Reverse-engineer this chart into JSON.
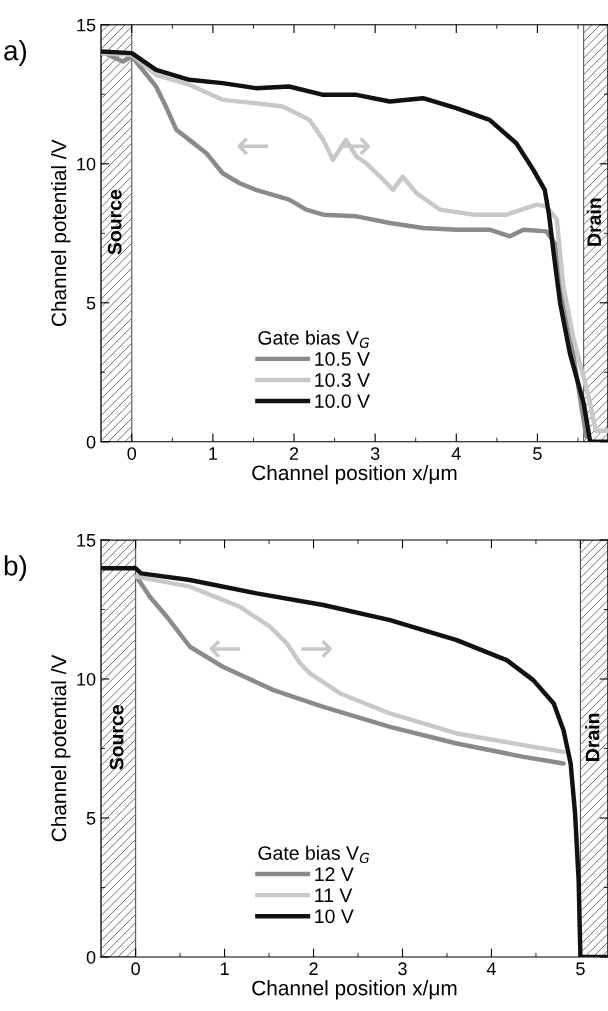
{
  "chart_data": [
    {
      "type": "line",
      "title": "a)",
      "xlabel": "Channel position x/μm",
      "ylabel": "Channel potential /V",
      "legend_title": "Gate bias V$_{G}$",
      "legend": "bottom",
      "grid": false,
      "line_style": "solid",
      "marker": "none",
      "xlim": [
        -0.38,
        5.87
      ],
      "ylim": [
        0,
        15
      ],
      "xticks": [
        0,
        1,
        2,
        3,
        4,
        5
      ],
      "yticks": [
        0,
        5,
        10,
        15
      ],
      "bands": [
        {
          "axis": "x",
          "from": -0.38,
          "to": 0,
          "label": "Source"
        },
        {
          "axis": "x",
          "from": 5.57,
          "to": 5.87,
          "label": "Drain"
        }
      ],
      "series": [
        {
          "name": "10.5 V",
          "color": "#8a8a8c",
          "x": [
            -0.38,
            -0.11,
            0,
            0.3,
            0.42,
            0.55,
            0.71,
            0.92,
            1.12,
            1.33,
            1.53,
            1.94,
            2.15,
            2.36,
            2.77,
            3.18,
            3.59,
            4.0,
            4.41,
            4.66,
            4.83,
            5.11,
            5.24,
            5.32,
            5.45,
            5.6
          ],
          "values": [
            14.04,
            13.68,
            13.86,
            12.78,
            12.06,
            11.22,
            10.86,
            10.38,
            9.66,
            9.3,
            9.06,
            8.71,
            8.35,
            8.17,
            8.11,
            7.87,
            7.69,
            7.63,
            7.63,
            7.39,
            7.63,
            7.57,
            7.03,
            5.2,
            3.0,
            0.2
          ]
        },
        {
          "name": "10.3 V",
          "color": "#c8c8c8",
          "x": [
            -0.38,
            0,
            0.3,
            0.71,
            1.12,
            1.53,
            1.86,
            2.03,
            2.19,
            2.36,
            2.48,
            2.64,
            2.77,
            2.89,
            3.06,
            3.22,
            3.34,
            3.51,
            3.8,
            4.21,
            4.62,
            4.99,
            5.11,
            5.24,
            5.32,
            5.44,
            5.65,
            5.72,
            5.87
          ],
          "values": [
            13.98,
            13.92,
            13.2,
            12.84,
            12.3,
            12.18,
            12.06,
            11.82,
            11.58,
            10.86,
            10.14,
            10.86,
            10.26,
            10.02,
            9.54,
            9.06,
            9.54,
            8.94,
            8.35,
            8.17,
            8.17,
            8.53,
            8.47,
            7.99,
            5.59,
            3.79,
            1.39,
            0.4,
            0.4
          ]
        },
        {
          "name": "10.0 V",
          "color": "#111111",
          "x": [
            -0.38,
            0,
            0.3,
            0.71,
            1.12,
            1.53,
            1.94,
            2.36,
            2.77,
            3.18,
            3.59,
            4.0,
            4.41,
            4.74,
            4.95,
            5.09,
            5.14,
            5.2,
            5.28,
            5.4,
            5.57,
            5.65,
            5.87
          ],
          "values": [
            14.04,
            13.98,
            13.38,
            13.02,
            12.9,
            12.72,
            12.78,
            12.48,
            12.48,
            12.24,
            12.36,
            12.0,
            11.58,
            10.74,
            9.78,
            9.06,
            8.23,
            6.79,
            4.99,
            3.19,
            1.39,
            0,
            0
          ]
        }
      ],
      "annotations": [
        "←",
        "→"
      ]
    },
    {
      "type": "line",
      "title": "b)",
      "xlabel": "Channel position x/μm",
      "ylabel": "Channel potential /V",
      "legend_title": "Gate bias V$_{G}$",
      "legend": "bottom",
      "grid": false,
      "line_style": "solid",
      "marker": "none",
      "xlim": [
        -0.39,
        5.31
      ],
      "ylim": [
        0,
        15
      ],
      "xticks": [
        0,
        1,
        2,
        3,
        4,
        5
      ],
      "yticks": [
        0,
        5,
        10,
        15
      ],
      "bands": [
        {
          "axis": "x",
          "from": -0.39,
          "to": 0,
          "label": "Source"
        },
        {
          "axis": "x",
          "from": 5.0,
          "to": 5.31,
          "label": "Drain"
        }
      ],
      "series": [
        {
          "name": "12 V",
          "color": "#8a8a8c",
          "x": [
            0.01,
            0.16,
            0.35,
            0.61,
            0.98,
            1.55,
            2.11,
            2.86,
            3.61,
            4.36,
            4.81
          ],
          "values": [
            13.68,
            12.96,
            12.24,
            11.16,
            10.44,
            9.6,
            9.0,
            8.28,
            7.68,
            7.2,
            6.96
          ]
        },
        {
          "name": "11 V",
          "color": "#c8c8c8",
          "x": [
            0.01,
            0.61,
            1.17,
            1.51,
            1.7,
            1.85,
            1.96,
            2.3,
            2.86,
            3.61,
            4.36,
            4.81
          ],
          "values": [
            13.68,
            13.32,
            12.6,
            11.88,
            11.28,
            10.56,
            10.2,
            9.48,
            8.76,
            8.04,
            7.62,
            7.38
          ]
        },
        {
          "name": "10 V",
          "color": "#111111",
          "x": [
            -0.39,
            0,
            0.06,
            0.61,
            1.36,
            2.11,
            2.86,
            3.61,
            4.17,
            4.47,
            4.7,
            4.81,
            4.89,
            4.94,
            4.98,
            5.0,
            5.31
          ],
          "values": [
            13.98,
            13.98,
            13.8,
            13.56,
            13.08,
            12.66,
            12.12,
            11.4,
            10.68,
            9.96,
            9.12,
            8.16,
            6.96,
            5.16,
            2.76,
            0,
            0
          ]
        }
      ],
      "annotations": [
        "←",
        "→"
      ]
    }
  ]
}
